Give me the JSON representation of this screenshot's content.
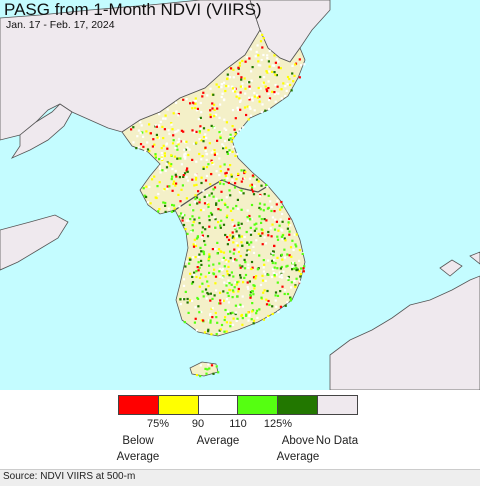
{
  "map": {
    "title": "PASG from 1-Month NDVI (VIIRS)",
    "subtitle": "Jan. 17 - Feb. 17, 2024",
    "colors": {
      "water": "#c4fcff",
      "land_nodata": "#efe9ee",
      "border": "#555555"
    }
  },
  "legend": {
    "swatches": [
      {
        "color": "#ff0000"
      },
      {
        "color": "#ffff00"
      },
      {
        "color": "#ffffff"
      },
      {
        "color": "#55ff11"
      },
      {
        "color": "#227700"
      },
      {
        "color": "#efe9ee"
      }
    ],
    "ticks": [
      "75%",
      "90",
      "110",
      "125%"
    ],
    "categories": [
      "Below\nAverage",
      "Average",
      "Above\nAverage",
      "No Data"
    ]
  },
  "footer": {
    "source": "Source: NDVI VIIRS at 500-m"
  }
}
